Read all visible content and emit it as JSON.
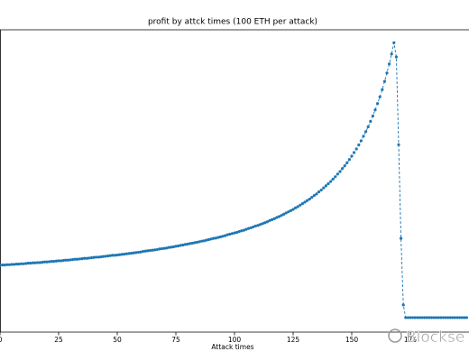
{
  "chart_data": {
    "type": "line",
    "title": "profit by attck times (100 ETH per attack)",
    "x_label": "Attack times",
    "watermark": "Blockse",
    "color": "#1f77b4",
    "line_style": "dashed",
    "markers": true,
    "xlim": [
      0,
      200
    ],
    "xticks": [
      0,
      25,
      50,
      75,
      100,
      125,
      150,
      175
    ],
    "ylim": [
      0,
      100
    ],
    "x": [
      0,
      1,
      2,
      3,
      4,
      5,
      6,
      7,
      8,
      9,
      10,
      11,
      12,
      13,
      14,
      15,
      16,
      17,
      18,
      19,
      20,
      21,
      22,
      23,
      24,
      25,
      26,
      27,
      28,
      29,
      30,
      31,
      32,
      33,
      34,
      35,
      36,
      37,
      38,
      39,
      40,
      41,
      42,
      43,
      44,
      45,
      46,
      47,
      48,
      49,
      50,
      51,
      52,
      53,
      54,
      55,
      56,
      57,
      58,
      59,
      60,
      61,
      62,
      63,
      64,
      65,
      66,
      67,
      68,
      69,
      70,
      71,
      72,
      73,
      74,
      75,
      76,
      77,
      78,
      79,
      80,
      81,
      82,
      83,
      84,
      85,
      86,
      87,
      88,
      89,
      90,
      91,
      92,
      93,
      94,
      95,
      96,
      97,
      98,
      99,
      100,
      101,
      102,
      103,
      104,
      105,
      106,
      107,
      108,
      109,
      110,
      111,
      112,
      113,
      114,
      115,
      116,
      117,
      118,
      119,
      120,
      121,
      122,
      123,
      124,
      125,
      126,
      127,
      128,
      129,
      130,
      131,
      132,
      133,
      134,
      135,
      136,
      137,
      138,
      139,
      140,
      141,
      142,
      143,
      144,
      145,
      146,
      147,
      148,
      149,
      150,
      151,
      152,
      153,
      154,
      155,
      156,
      157,
      158,
      159,
      160,
      161,
      162,
      163,
      164,
      165,
      166,
      167,
      168,
      169,
      170,
      171,
      172,
      173,
      174,
      175,
      176,
      177,
      178,
      179,
      180,
      181,
      182,
      183,
      184,
      185,
      186,
      187,
      188,
      189,
      190,
      191,
      192,
      193,
      194,
      195,
      196,
      197,
      198,
      199
    ],
    "values": [
      22.1,
      22.2,
      22.2,
      22.3,
      22.3,
      22.4,
      22.4,
      22.5,
      22.5,
      22.6,
      22.6,
      22.7,
      22.8,
      22.8,
      22.9,
      22.9,
      23.0,
      23.0,
      23.1,
      23.2,
      23.2,
      23.3,
      23.4,
      23.4,
      23.5,
      23.6,
      23.6,
      23.7,
      23.8,
      23.8,
      23.9,
      24.0,
      24.1,
      24.1,
      24.2,
      24.3,
      24.4,
      24.4,
      24.5,
      24.6,
      24.7,
      24.8,
      24.8,
      24.9,
      25.0,
      25.1,
      25.2,
      25.3,
      25.4,
      25.4,
      25.5,
      25.6,
      25.7,
      25.8,
      25.9,
      26.0,
      26.1,
      26.2,
      26.3,
      26.4,
      26.5,
      26.7,
      26.8,
      26.9,
      27.0,
      27.1,
      27.2,
      27.3,
      27.5,
      27.6,
      27.7,
      27.8,
      28.0,
      28.1,
      28.2,
      28.4,
      28.5,
      28.7,
      28.8,
      29.0,
      29.1,
      29.3,
      29.4,
      29.6,
      29.7,
      29.9,
      30.1,
      30.2,
      30.4,
      30.6,
      30.8,
      31.0,
      31.1,
      31.3,
      31.5,
      31.7,
      31.9,
      32.2,
      32.4,
      32.6,
      32.8,
      33.0,
      33.3,
      33.5,
      33.7,
      34.0,
      34.3,
      34.5,
      34.8,
      35.1,
      35.3,
      35.6,
      35.9,
      36.2,
      36.5,
      36.9,
      37.2,
      37.5,
      37.9,
      38.2,
      38.6,
      39.0,
      39.4,
      39.8,
      40.2,
      40.6,
      41.1,
      41.5,
      42.0,
      42.5,
      43.0,
      43.5,
      44.0,
      44.6,
      45.2,
      45.7,
      46.4,
      47.0,
      47.7,
      48.4,
      49.1,
      49.8,
      50.6,
      51.4,
      52.3,
      53.1,
      54.1,
      55.0,
      56.0,
      57.1,
      58.2,
      59.4,
      60.6,
      61.9,
      63.3,
      64.8,
      66.3,
      67.9,
      69.7,
      71.5,
      73.5,
      75.6,
      77.8,
      80.2,
      82.9,
      85.7,
      88.7,
      92.0,
      95.7,
      91.0,
      62.0,
      31.0,
      9.0,
      4.8,
      4.8,
      4.8,
      4.8,
      4.8,
      4.8,
      4.8,
      4.8,
      4.8,
      4.8,
      4.8,
      4.8,
      4.8,
      4.8,
      4.8,
      4.8,
      4.8,
      4.8,
      4.8,
      4.8,
      4.8,
      4.8,
      4.8,
      4.8,
      4.8,
      4.8,
      4.8
    ]
  }
}
